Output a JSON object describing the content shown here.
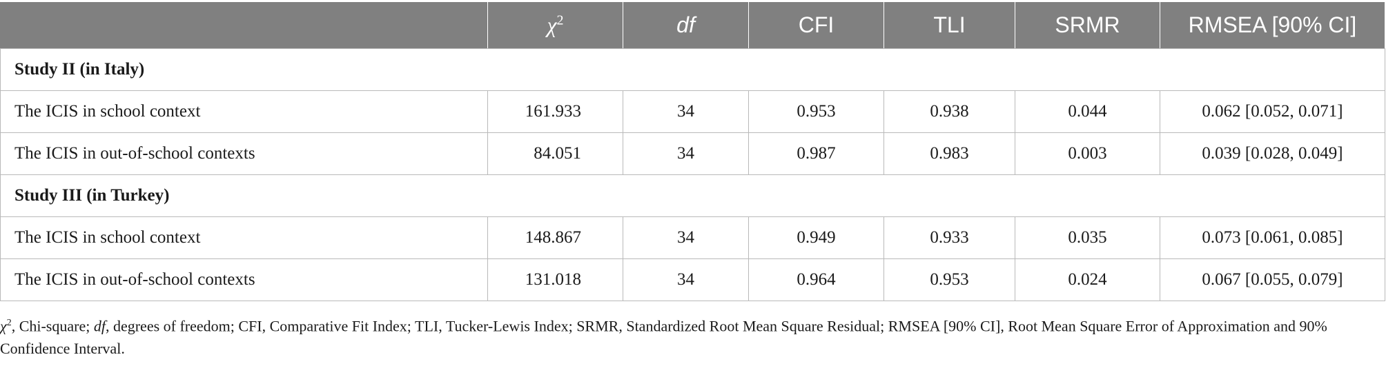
{
  "table": {
    "headers": {
      "label": "",
      "chi_symbol": "χ",
      "chi_sup": "2",
      "df": "df",
      "cfi": "CFI",
      "tli": "TLI",
      "srmr": "SRMR",
      "rmsea": "RMSEA [90% CI]"
    },
    "sections": [
      {
        "title": "Study II (in Italy)",
        "rows": [
          {
            "label": "The ICIS in school context",
            "chi": "161.933",
            "df": "34",
            "cfi": "0.953",
            "tli": "0.938",
            "srmr": "0.044",
            "rmsea": "0.062 [0.052, 0.071]"
          },
          {
            "label": "The ICIS in out-of-school contexts",
            "chi": "84.051",
            "df": "34",
            "cfi": "0.987",
            "tli": "0.983",
            "srmr": "0.003",
            "rmsea": "0.039 [0.028, 0.049]"
          }
        ]
      },
      {
        "title": "Study III (in Turkey)",
        "rows": [
          {
            "label": "The ICIS in school context",
            "chi": "148.867",
            "df": "34",
            "cfi": "0.949",
            "tli": "0.933",
            "srmr": "0.035",
            "rmsea": "0.073 [0.061, 0.085]"
          },
          {
            "label": "The ICIS in out-of-school contexts",
            "chi": "131.018",
            "df": "34",
            "cfi": "0.964",
            "tli": "0.953",
            "srmr": "0.024",
            "rmsea": "0.067 [0.055, 0.079]"
          }
        ]
      }
    ]
  },
  "footnote": {
    "chi_symbol": "χ",
    "chi_sup": "2",
    "part1": ", Chi-square; ",
    "df_italic": "df",
    "part2": ", degrees of freedom; CFI, Comparative Fit Index; TLI, Tucker-Lewis Index; SRMR, Standardized Root Mean Square Residual; RMSEA [90% CI], Root Mean Square Error of Approximation and 90% Confidence Interval."
  }
}
